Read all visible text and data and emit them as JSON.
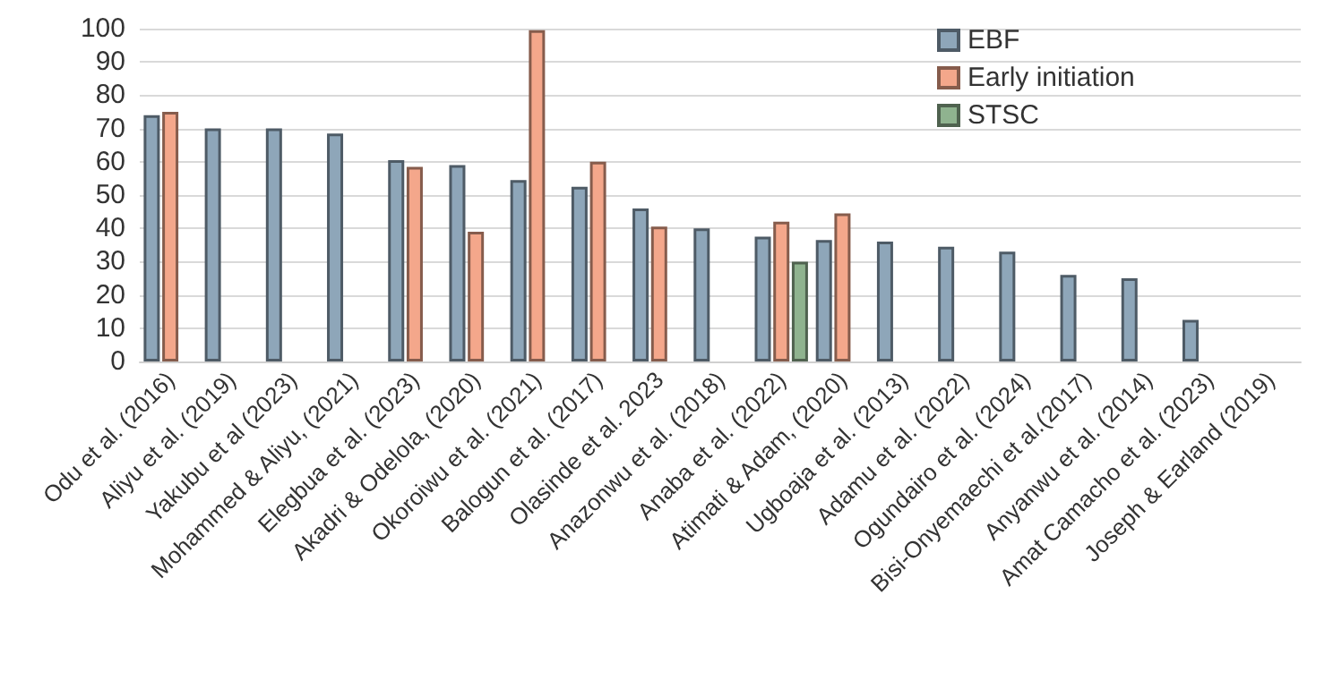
{
  "chart_data": {
    "type": "bar",
    "categories": [
      "Odu et al. (2016)",
      "Aliyu et al. (2019)",
      "Yakubu et al (2023)",
      "Mohammed & Aliyu, (2021)",
      "Elegbua et al. (2023)",
      "Akadri & Odelola, (2020)",
      "Okoroiwu et al. (2021)",
      "Balogun et al. (2017)",
      "Olasinde et al. 2023",
      "Anazonwu et al. (2018)",
      "Anaba et al. (2022)",
      "Atimati & Adam, (2020)",
      "Ugboaja et al. (2013)",
      "Adamu et al. (2022)",
      "Ogundairo et al. (2024)",
      "Bisi-Onyemaechi et al.(2017)",
      "Anyanwu et al. (2014)",
      "Amat Camacho et al. (2023)",
      "Joseph & Earland (2019)"
    ],
    "series": [
      {
        "name": "EBF",
        "color": "#8ea6b9",
        "values": [
          74,
          70,
          70,
          68.5,
          60.5,
          59,
          54.5,
          52.5,
          46,
          40,
          37.5,
          36.5,
          36,
          34.5,
          33,
          26,
          25,
          12.5,
          null
        ]
      },
      {
        "name": "Early initiation",
        "color": "#f4a78b",
        "values": [
          75,
          null,
          null,
          null,
          58.5,
          39,
          99.5,
          60,
          40.5,
          null,
          42,
          44.5,
          null,
          null,
          null,
          null,
          null,
          null,
          null
        ]
      },
      {
        "name": "STSC",
        "color": "#8fb38f",
        "values": [
          null,
          null,
          null,
          null,
          null,
          null,
          null,
          null,
          null,
          null,
          30,
          null,
          null,
          null,
          null,
          null,
          null,
          null,
          null
        ]
      }
    ],
    "ylim": [
      0,
      100
    ],
    "yticks": [
      0,
      10,
      20,
      30,
      40,
      50,
      60,
      70,
      80,
      90,
      100
    ],
    "grid": "y",
    "legend": "top"
  }
}
